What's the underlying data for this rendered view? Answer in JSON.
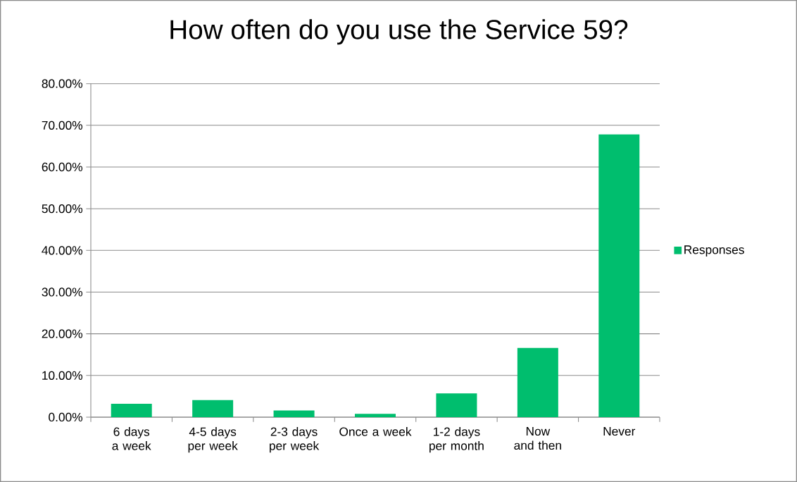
{
  "chart_data": {
    "type": "bar",
    "title": "How often do you use the Service 59?",
    "categories": [
      "6 days a week",
      "4-5 days per week",
      "2-3 days per week",
      "Once a week",
      "1-2 days per month",
      "Now and then",
      "Never"
    ],
    "series": [
      {
        "name": "Responses",
        "color": "#00be6e",
        "values": [
          3.2,
          4.1,
          1.6,
          0.8,
          5.7,
          16.6,
          67.8
        ]
      }
    ],
    "ylim": [
      0,
      80
    ],
    "yticks": [
      {
        "value": 0,
        "label": "0.00%"
      },
      {
        "value": 10,
        "label": "10.00%"
      },
      {
        "value": 20,
        "label": "20.00%"
      },
      {
        "value": 30,
        "label": "30.00%"
      },
      {
        "value": 40,
        "label": "40.00%"
      },
      {
        "value": 50,
        "label": "50.00%"
      },
      {
        "value": 60,
        "label": "60.00%"
      },
      {
        "value": 70,
        "label": "70.00%"
      },
      {
        "value": 80,
        "label": "80.00%"
      }
    ],
    "grid": "y",
    "legend": "right"
  }
}
